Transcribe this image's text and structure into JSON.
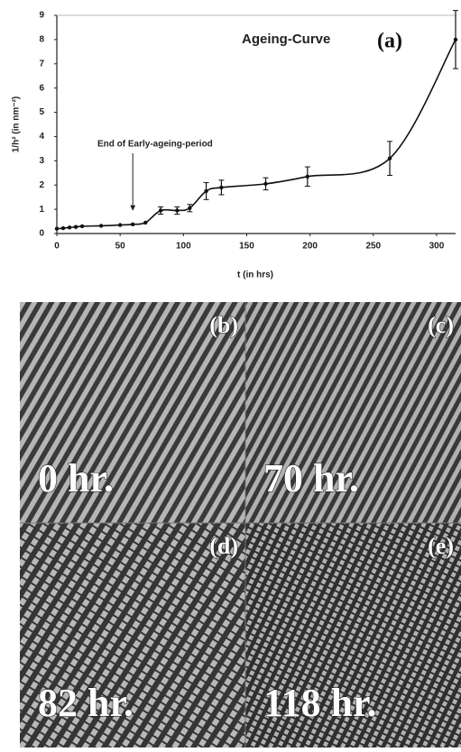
{
  "chart_data": {
    "type": "line",
    "title": "Ageing-Curve",
    "panel_label": "(a)",
    "x_label": "t (in hrs)",
    "y_label": "1/h² (in nm⁻²)",
    "annotation": {
      "text": "End of Early-ageing-period",
      "x": 60
    },
    "xlim": [
      0,
      315
    ],
    "xticks": [
      0,
      50,
      100,
      150,
      200,
      250,
      300
    ],
    "ylim": [
      0,
      9
    ],
    "yticks": [
      0,
      1,
      2,
      3,
      4,
      5,
      6,
      7,
      8,
      9
    ],
    "color": "#111111",
    "x": [
      0,
      5,
      10,
      15,
      20,
      35,
      50,
      60,
      70,
      82,
      95,
      105,
      118,
      130,
      165,
      198,
      263,
      315
    ],
    "values": [
      0.2,
      0.22,
      0.25,
      0.27,
      0.3,
      0.32,
      0.35,
      0.38,
      0.45,
      0.95,
      0.95,
      1.05,
      1.75,
      1.9,
      2.05,
      2.35,
      3.1,
      8.0
    ],
    "errors": [
      null,
      null,
      null,
      null,
      null,
      null,
      null,
      null,
      null,
      0.15,
      0.15,
      0.15,
      0.35,
      0.3,
      0.25,
      0.4,
      0.7,
      1.2
    ]
  },
  "panels": [
    {
      "label": "(b)",
      "time": "0 hr."
    },
    {
      "label": "(c)",
      "time": "70 hr."
    },
    {
      "label": "(d)",
      "time": "82 hr."
    },
    {
      "label": "(e)",
      "time": "118 hr."
    }
  ]
}
